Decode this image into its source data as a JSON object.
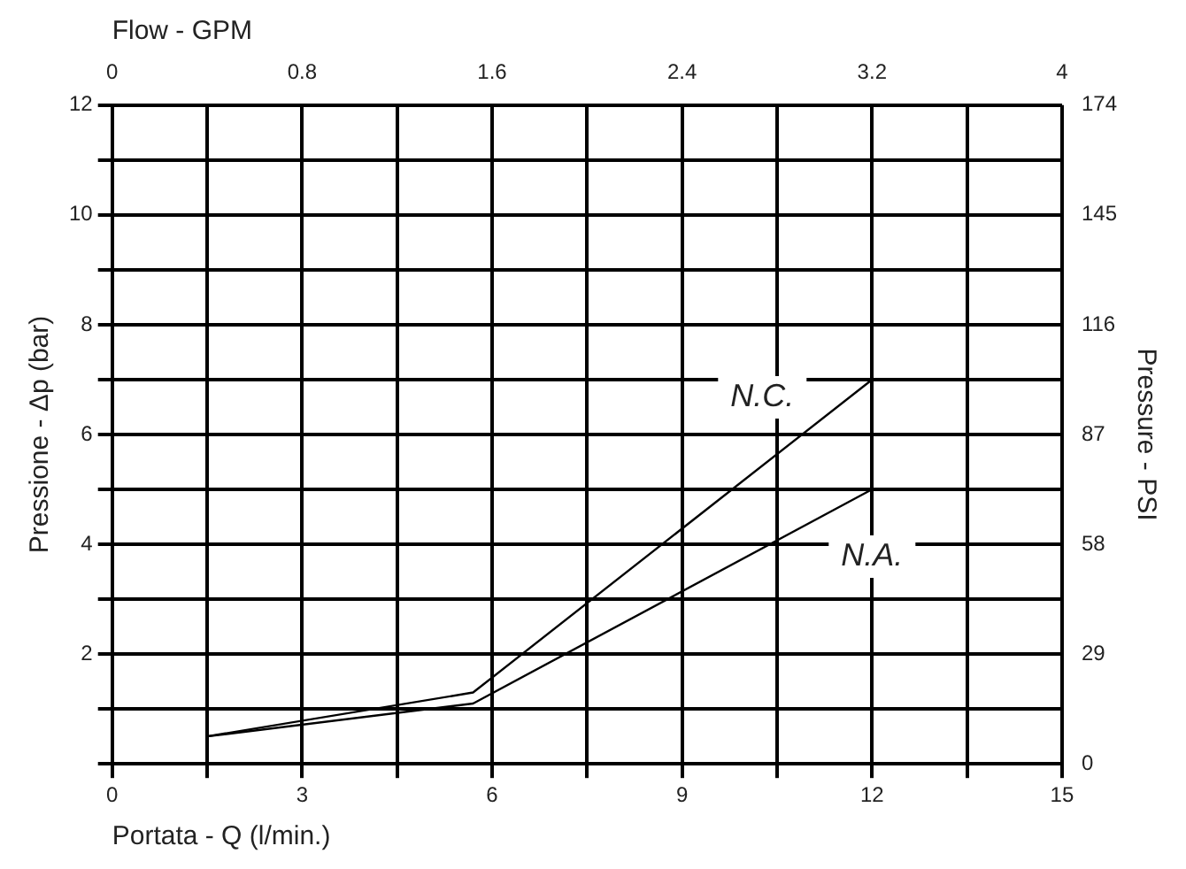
{
  "chart_data": {
    "type": "line",
    "xlabel": "Portata - Q (l/min.)",
    "ylabel": "Pressione - Δp (bar)",
    "y2label": "Pressure - PSI",
    "x2label": "Flow - GPM",
    "x": [
      1.5,
      5.7,
      12
    ],
    "series": [
      {
        "name": "N.C.",
        "color": "#000000",
        "values": [
          0.5,
          1.3,
          7
        ]
      },
      {
        "name": "N.A.",
        "color": "#000000",
        "values": [
          0.5,
          1.1,
          5
        ]
      }
    ],
    "xlim": [
      0,
      15
    ],
    "xticks": [
      0,
      {
        "value": 1.5,
        "label": null
      },
      3,
      {
        "value": 4.5,
        "label": null
      },
      6,
      {
        "value": 7.5,
        "label": null
      },
      9,
      {
        "value": 10.5,
        "label": null
      },
      12,
      {
        "value": 13.5,
        "label": null
      },
      15
    ],
    "ylim": [
      0,
      12
    ],
    "yticks": [
      {
        "value": 0,
        "label": null
      },
      {
        "value": 1,
        "label": null
      },
      2,
      {
        "value": 3,
        "label": null
      },
      4,
      {
        "value": 5,
        "label": null
      },
      6,
      {
        "value": 7,
        "label": null
      },
      8,
      {
        "value": 9,
        "label": null
      },
      10,
      {
        "value": 11,
        "label": null
      },
      12
    ],
    "x2lim": [
      0,
      4
    ],
    "x2ticks": [
      0,
      0.8,
      1.6,
      2.4,
      3.2,
      4
    ],
    "y2lim": [
      0,
      174
    ],
    "y2ticks": [
      0,
      29,
      58,
      87,
      116,
      145,
      174
    ],
    "grid": true,
    "legend": false,
    "marker": "none",
    "line_style": "solid"
  }
}
